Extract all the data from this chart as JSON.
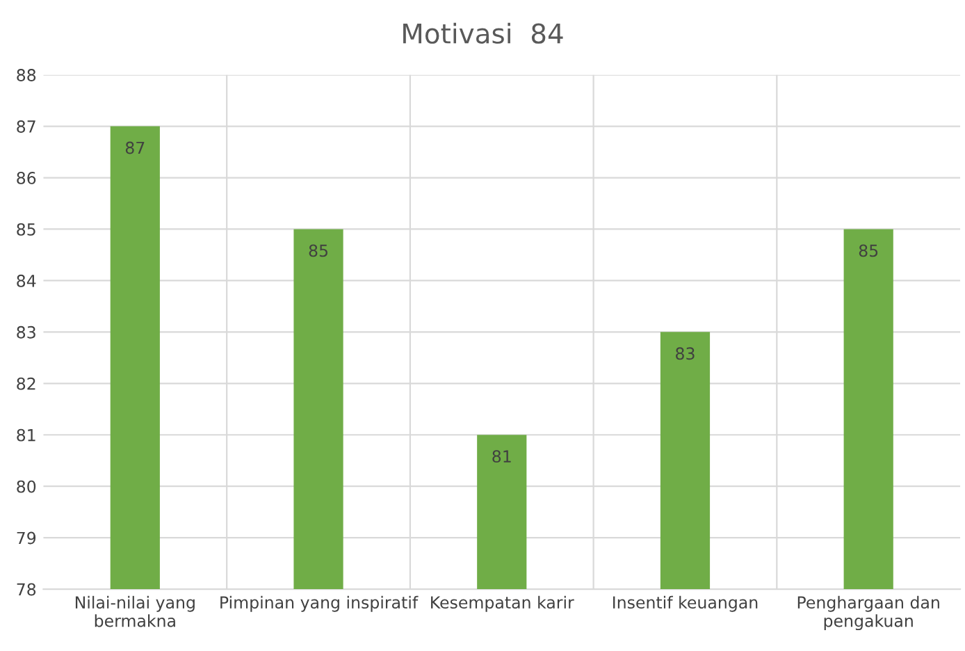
{
  "chart_data": {
    "type": "bar",
    "title": "Motivasi  84",
    "categories": [
      "Nilai-nilai yang\nbermakna",
      "Pimpinan yang inspiratif",
      "Kesempatan karir",
      "Insentif keuangan",
      "Penghargaan dan\npengakuan"
    ],
    "values": [
      87,
      85,
      81,
      83,
      85
    ],
    "color": "#70ad47",
    "ylim": [
      78,
      88
    ],
    "yticks": [
      78,
      79,
      80,
      81,
      82,
      83,
      84,
      85,
      86,
      87,
      88
    ],
    "grid": true,
    "data_labels": true
  }
}
